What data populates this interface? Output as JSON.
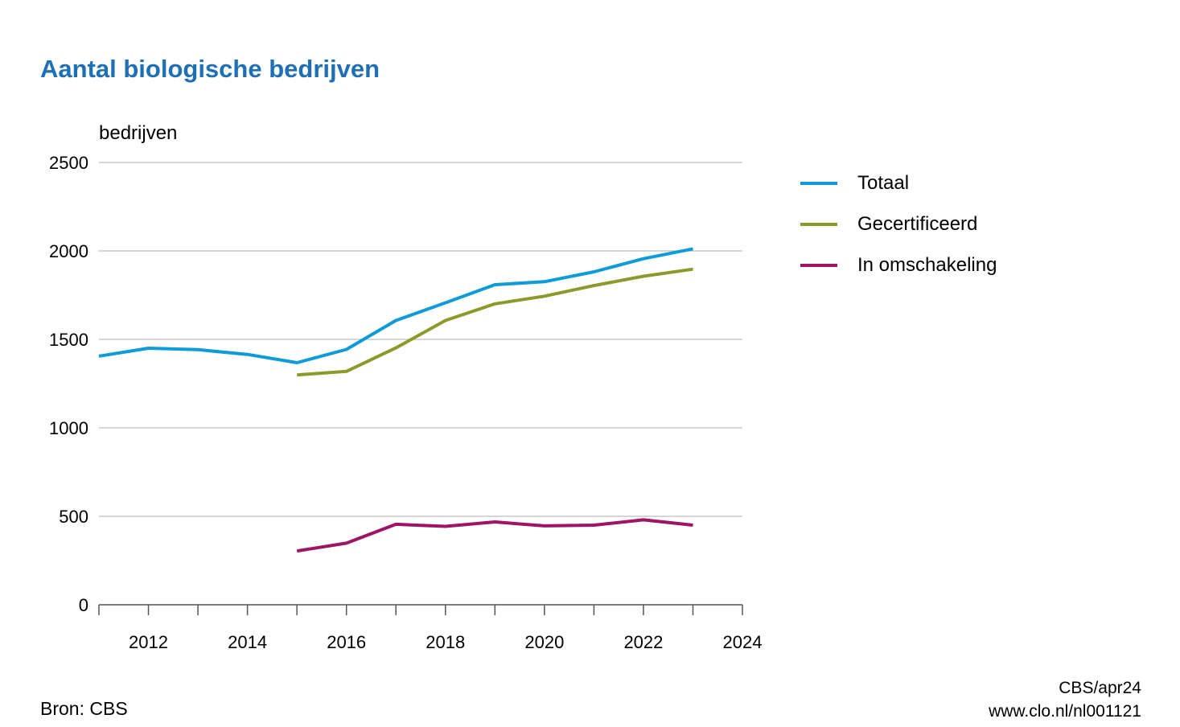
{
  "chart_data": {
    "type": "line",
    "title": "Aantal biologische bedrijven",
    "ylabel": "bedrijven",
    "xlabel": "",
    "xlim": [
      2011,
      2024
    ],
    "ylim": [
      0,
      2500
    ],
    "xticks": [
      2012,
      2014,
      2016,
      2018,
      2020,
      2022,
      2024
    ],
    "yticks": [
      0,
      500,
      1000,
      1500,
      2000,
      2500
    ],
    "grid": "horizontal",
    "legend_position": "right",
    "series": [
      {
        "name": "Totaal",
        "color": "#0e9bd8",
        "x": [
          2011,
          2012,
          2013,
          2014,
          2015,
          2016,
          2017,
          2018,
          2019,
          2020,
          2021,
          2022,
          2023
        ],
        "y": [
          1405,
          1450,
          1442,
          1415,
          1368,
          1443,
          1607,
          1707,
          1809,
          1826,
          1882,
          1956,
          2012
        ]
      },
      {
        "name": "Gecertificeerd",
        "color": "#8c9a2b",
        "x": [
          2015,
          2016,
          2017,
          2018,
          2019,
          2020,
          2021,
          2022,
          2023
        ],
        "y": [
          1299,
          1319,
          1452,
          1607,
          1701,
          1744,
          1804,
          1857,
          1897
        ]
      },
      {
        "name": "In omschakeling",
        "color": "#a01466",
        "x": [
          2015,
          2016,
          2017,
          2018,
          2019,
          2020,
          2021,
          2022,
          2023
        ],
        "y": [
          304,
          348,
          455,
          443,
          468,
          446,
          450,
          480,
          450
        ]
      }
    ]
  },
  "footer": {
    "source": "Bron: CBS",
    "credit_line1": "CBS/apr24",
    "credit_line2": "www.clo.nl/nl001121"
  }
}
